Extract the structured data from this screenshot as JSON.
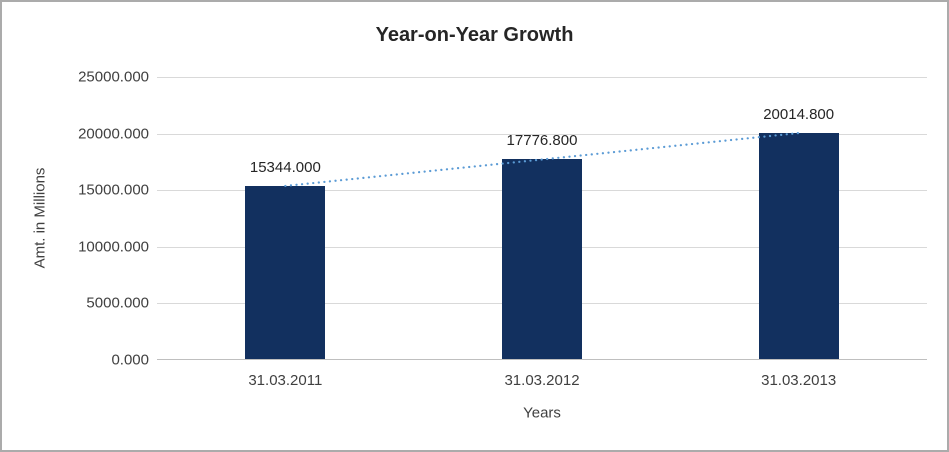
{
  "chart_data": {
    "type": "bar",
    "title": "Year-on-Year Growth",
    "categories": [
      "31.03.2011",
      "31.03.2012",
      "31.03.2013"
    ],
    "values": [
      15344.0,
      17776.8,
      20014.8
    ],
    "value_labels": [
      "15344.000",
      "17776.800",
      "20014.800"
    ],
    "xlabel": "Years",
    "ylabel": "Amt. in Millions",
    "ylim": [
      0,
      25000
    ],
    "ytick_interval": 5000,
    "ytick_labels": [
      "0.000",
      "5000.000",
      "10000.000",
      "15000.000",
      "20000.000",
      "25000.000"
    ],
    "grid": true,
    "legend": "none",
    "bar_color": "#12305f",
    "trendline": {
      "type": "linear",
      "style": "dotted",
      "color": "#5b9bd5"
    }
  }
}
